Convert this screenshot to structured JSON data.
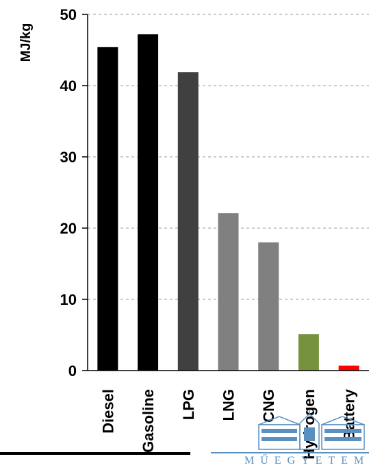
{
  "chart_data": {
    "type": "bar",
    "categories": [
      "Diesel",
      "Gasoline",
      "LPG",
      "LNG",
      "CNG",
      "Hydrogen",
      "Battery"
    ],
    "values": [
      45.4,
      47.2,
      41.9,
      22.1,
      18.0,
      5.1,
      0.7
    ],
    "colors": [
      "#000000",
      "#000000",
      "#404040",
      "#808080",
      "#808080",
      "#76923c",
      "#ff0000"
    ],
    "title": "",
    "xlabel": "",
    "ylabel": "MJ/kg",
    "ylim": [
      0,
      50
    ],
    "yticks": [
      0,
      10,
      20,
      30,
      40,
      50
    ],
    "grid": true,
    "legend": "none"
  },
  "logo": {
    "text": "MŰEGYETEM",
    "color": "#5a8fbf"
  }
}
